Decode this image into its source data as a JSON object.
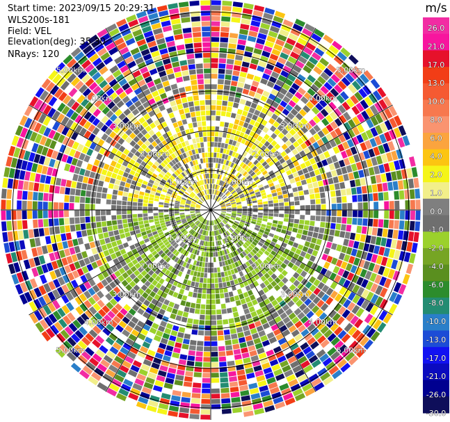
{
  "header": {
    "start_time": "Start time: 2023/09/15 20:29:31",
    "instrument": "WLS200s-181",
    "field": "Field: VEL",
    "elevation": "Elevation(deg): 35.30",
    "nrays": "NRays: 120"
  },
  "chart_data": {
    "type": "heatmap",
    "projection": "polar-ppi",
    "field": "VEL",
    "units": "m/s",
    "nrays": 120,
    "range_ring_labels": [
      "1.00km",
      "2.00km",
      "3.00km",
      "4.00km",
      "5.00km"
    ],
    "max_range_km": 5.3,
    "colorbar": {
      "title": "m/s",
      "tick_labels": [
        "26.0",
        "21.0",
        "17.0",
        "13.0",
        "10.0",
        "8.0",
        "6.0",
        "4.0",
        "2.0",
        "1.0",
        "0.0",
        "-1.0",
        "-2.0",
        "-4.0",
        "-6.0",
        "-8.0",
        "-10.0",
        "-13.0",
        "-17.0",
        "-21.0",
        "-26.0",
        "-30.0"
      ],
      "colors_top_to_bottom": [
        "#f22ca3",
        "#f7159e",
        "#e6112b",
        "#f23d16",
        "#f55a32",
        "#f7784e",
        "#fa9470",
        "#fba43e",
        "#fcc511",
        "#f5f518",
        "#f2ef8a",
        "#7f7f7f",
        "#6f6f6f",
        "#9bd12c",
        "#76a524",
        "#5a8f1f",
        "#2c8c2c",
        "#238c72",
        "#2a7fc9",
        "#1c4cd6",
        "#1212f2",
        "#0b0bbf",
        "#000090",
        "#0e0e5a"
      ]
    },
    "pattern": {
      "near_field": "positive velocities (yellow) in northern half, negative (green) in southern half",
      "far_field": "noisy/random values across full colour range beyond ~3 km"
    },
    "grid": true,
    "spokes_deg": [
      0,
      30,
      60,
      90,
      120,
      150,
      180,
      210,
      240,
      270,
      300,
      330
    ]
  }
}
